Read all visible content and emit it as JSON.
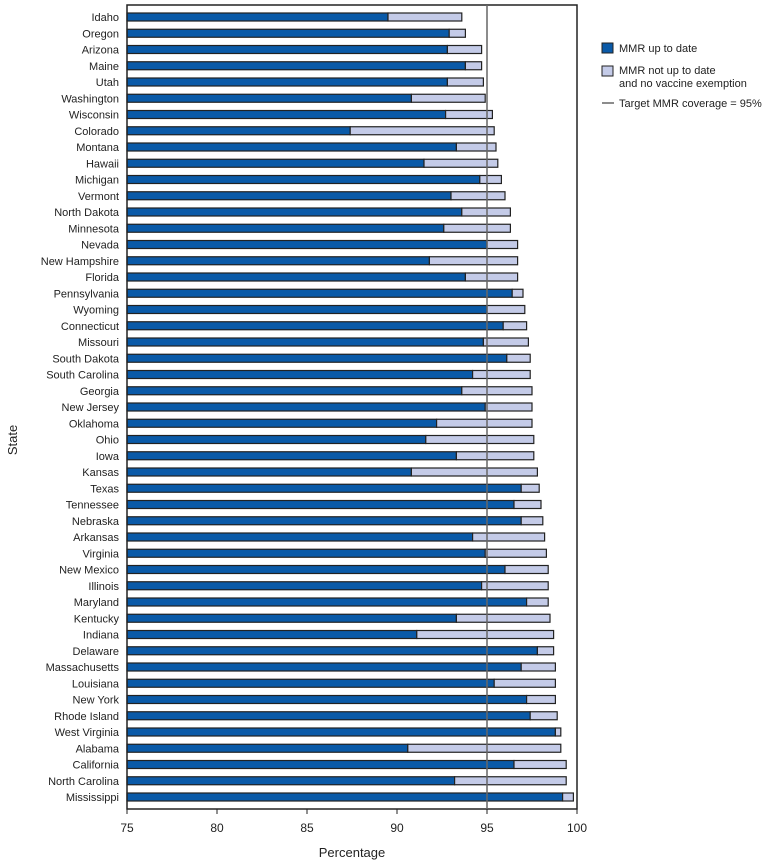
{
  "chart_data": {
    "type": "bar",
    "orientation": "horizontal",
    "stacked": true,
    "xlabel": "Percentage",
    "ylabel": "State",
    "xlim": [
      75,
      100
    ],
    "xticks": [
      "75",
      "80",
      "85",
      "90",
      "95",
      "100"
    ],
    "reference_line": {
      "value": 95,
      "label": "Target MMR coverage = 95%"
    },
    "legend_position": "top-right",
    "series": [
      {
        "name": "MMR up to date",
        "color": "#0a5aa8"
      },
      {
        "name": "MMR not up to date and no vaccine exemption",
        "name_lines": [
          "MMR not up to date",
          "and no vaccine exemption"
        ],
        "color": "#c4cbe8"
      }
    ],
    "categories": [
      "Idaho",
      "Oregon",
      "Arizona",
      "Maine",
      "Utah",
      "Washington",
      "Wisconsin",
      "Colorado",
      "Montana",
      "Hawaii",
      "Michigan",
      "Vermont",
      "North Dakota",
      "Minnesota",
      "Nevada",
      "New Hampshire",
      "Florida",
      "Pennsylvania",
      "Wyoming",
      "Connecticut",
      "Missouri",
      "South Dakota",
      "South Carolina",
      "Georgia",
      "New Jersey",
      "Oklahoma",
      "Ohio",
      "Iowa",
      "Kansas",
      "Texas",
      "Tennessee",
      "Nebraska",
      "Arkansas",
      "Virginia",
      "New Mexico",
      "Illinois",
      "Maryland",
      "Kentucky",
      "Indiana",
      "Delaware",
      "Massachusetts",
      "Louisiana",
      "New York",
      "Rhode Island",
      "West Virginia",
      "Alabama",
      "California",
      "North Carolina",
      "Mississippi"
    ],
    "mmr_up_to_date": [
      89.5,
      92.9,
      92.8,
      93.8,
      92.8,
      90.8,
      92.7,
      87.4,
      93.3,
      91.5,
      94.6,
      93.0,
      93.6,
      92.6,
      95.0,
      91.8,
      93.8,
      96.4,
      95.0,
      95.9,
      94.8,
      96.1,
      94.2,
      93.6,
      94.9,
      92.2,
      91.6,
      93.3,
      90.8,
      96.9,
      96.5,
      96.9,
      94.2,
      94.9,
      96.0,
      94.7,
      97.2,
      93.3,
      91.1,
      97.8,
      96.9,
      95.4,
      97.2,
      97.4,
      98.8,
      90.6,
      96.5,
      93.2,
      99.2
    ],
    "mmr_not_up_to_date_no_exemption": [
      4.1,
      0.9,
      1.9,
      0.9,
      2.0,
      4.1,
      2.6,
      8.0,
      2.2,
      4.1,
      1.2,
      3.0,
      2.7,
      3.7,
      1.7,
      4.9,
      2.9,
      0.6,
      2.1,
      1.3,
      2.5,
      1.3,
      3.2,
      3.9,
      2.6,
      5.3,
      6.0,
      4.3,
      7.0,
      1.0,
      1.5,
      1.2,
      4.0,
      3.4,
      2.4,
      3.7,
      1.2,
      5.2,
      7.6,
      0.9,
      1.9,
      3.4,
      1.6,
      1.5,
      0.3,
      8.5,
      2.9,
      6.2,
      0.6
    ]
  }
}
